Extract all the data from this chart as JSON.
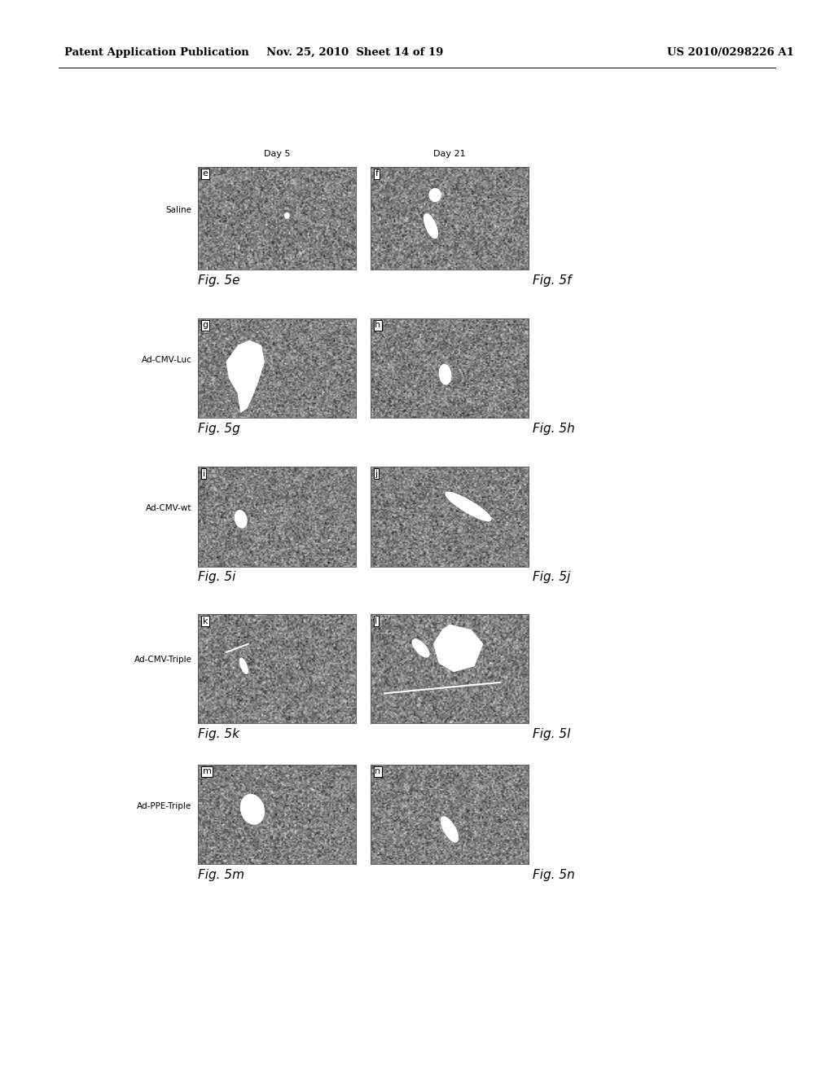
{
  "header_left": "Patent Application Publication",
  "header_mid": "Nov. 25, 2010  Sheet 14 of 19",
  "header_right": "US 2010/0298226 A1",
  "col_labels": [
    "Day 5",
    "Day 21"
  ],
  "row_labels": [
    "Saline",
    "Ad-CMV-Luc",
    "Ad-CMV-wt",
    "Ad-CMV-Triple",
    "Ad-PPE-Triple"
  ],
  "panel_letters": [
    [
      "e",
      "f"
    ],
    [
      "g",
      "h"
    ],
    [
      "i",
      "j"
    ],
    [
      "k",
      "l"
    ],
    [
      "m",
      "n"
    ]
  ],
  "fig_labels": [
    [
      "Fig. 5e",
      "Fig. 5f"
    ],
    [
      "Fig. 5g",
      "Fig. 5h"
    ],
    [
      "Fig. 5i",
      "Fig. 5j"
    ],
    [
      "Fig. 5k",
      "Fig. 5l"
    ],
    [
      "Fig. 5m",
      "Fig. 5n"
    ]
  ],
  "bg_color": "#ffffff"
}
